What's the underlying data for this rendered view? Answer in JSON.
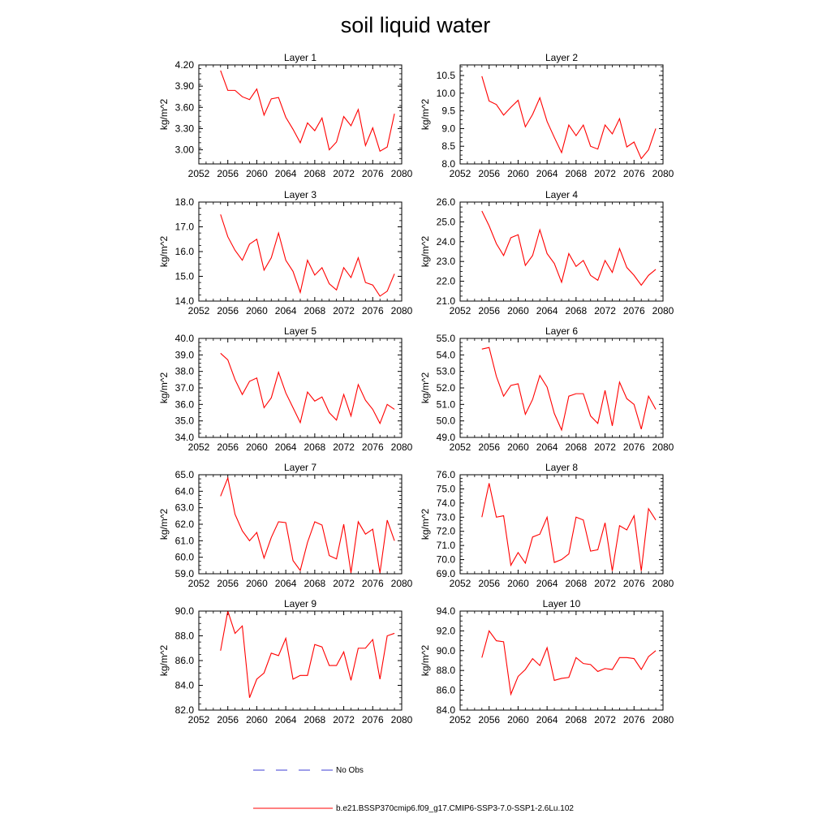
{
  "figure": {
    "title": "soil liquid water",
    "legend": {
      "obs_label": "No Obs",
      "obs_color": "#3d3dd6",
      "model_label": "b.e21.BSSP370cmip6.f09_g17.CMIP6-SSP3-7.0-SSP1-2.6Lu.102",
      "model_color": "#ff0000"
    }
  },
  "chart_data": [
    {
      "type": "line",
      "title": "Layer 1",
      "xlabel": "",
      "ylabel": "kg/m^2",
      "xlim": [
        2052,
        2080
      ],
      "ylim": [
        2.8,
        4.2
      ],
      "xticks": [
        "2052",
        "2056",
        "2060",
        "2064",
        "2068",
        "2072",
        "2076",
        "2080"
      ],
      "yticks": [
        "3.00",
        "3.30",
        "3.60",
        "3.90",
        "4.20"
      ],
      "series": [
        {
          "color": "#ff0000",
          "x": [
            2055,
            2056,
            2057,
            2058,
            2059,
            2060,
            2061,
            2062,
            2063,
            2064,
            2065,
            2066,
            2067,
            2068,
            2069,
            2070,
            2071,
            2072,
            2073,
            2074,
            2075,
            2076,
            2077,
            2078,
            2079
          ],
          "y": [
            4.12,
            3.84,
            3.84,
            3.75,
            3.71,
            3.86,
            3.49,
            3.72,
            3.74,
            3.46,
            3.29,
            3.1,
            3.38,
            3.27,
            3.45,
            3.0,
            3.11,
            3.47,
            3.34,
            3.57,
            3.06,
            3.31,
            2.98,
            3.04,
            3.51
          ]
        }
      ]
    },
    {
      "type": "line",
      "title": "Layer 2",
      "xlabel": "",
      "ylabel": "kg/m^2",
      "xlim": [
        2052,
        2080
      ],
      "ylim": [
        8.0,
        10.8
      ],
      "xticks": [
        "2052",
        "2056",
        "2060",
        "2064",
        "2068",
        "2072",
        "2076",
        "2080"
      ],
      "yticks": [
        "8.0",
        "8.5",
        "9.0",
        "9.5",
        "10.0",
        "10.5"
      ],
      "series": [
        {
          "color": "#ff0000",
          "x": [
            2055,
            2056,
            2057,
            2058,
            2059,
            2060,
            2061,
            2062,
            2063,
            2064,
            2065,
            2066,
            2067,
            2068,
            2069,
            2070,
            2071,
            2072,
            2073,
            2074,
            2075,
            2076,
            2077,
            2078,
            2079
          ],
          "y": [
            10.48,
            9.78,
            9.68,
            9.38,
            9.6,
            9.8,
            9.05,
            9.4,
            9.87,
            9.2,
            8.75,
            8.32,
            9.1,
            8.8,
            9.1,
            8.5,
            8.42,
            9.1,
            8.85,
            9.28,
            8.48,
            8.62,
            8.15,
            8.4,
            9.0
          ]
        }
      ]
    },
    {
      "type": "line",
      "title": "Layer 3",
      "xlabel": "",
      "ylabel": "kg/m^2",
      "xlim": [
        2052,
        2080
      ],
      "ylim": [
        14.0,
        18.0
      ],
      "xticks": [
        "2052",
        "2056",
        "2060",
        "2064",
        "2068",
        "2072",
        "2076",
        "2080"
      ],
      "yticks": [
        "14.0",
        "15.0",
        "16.0",
        "17.0",
        "18.0"
      ],
      "series": [
        {
          "color": "#ff0000",
          "x": [
            2055,
            2056,
            2057,
            2058,
            2059,
            2060,
            2061,
            2062,
            2063,
            2064,
            2065,
            2066,
            2067,
            2068,
            2069,
            2070,
            2071,
            2072,
            2073,
            2074,
            2075,
            2076,
            2077,
            2078,
            2079
          ],
          "y": [
            17.5,
            16.6,
            16.05,
            15.65,
            16.3,
            16.5,
            15.25,
            15.75,
            16.75,
            15.65,
            15.2,
            14.35,
            15.65,
            15.05,
            15.35,
            14.7,
            14.45,
            15.35,
            14.95,
            15.75,
            14.75,
            14.65,
            14.2,
            14.4,
            15.1
          ]
        }
      ]
    },
    {
      "type": "line",
      "title": "Layer 4",
      "xlabel": "",
      "ylabel": "kg/m^2",
      "xlim": [
        2052,
        2080
      ],
      "ylim": [
        21.0,
        26.0
      ],
      "xticks": [
        "2052",
        "2056",
        "2060",
        "2064",
        "2068",
        "2072",
        "2076",
        "2080"
      ],
      "yticks": [
        "21.0",
        "22.0",
        "23.0",
        "24.0",
        "25.0",
        "26.0"
      ],
      "series": [
        {
          "color": "#ff0000",
          "x": [
            2055,
            2056,
            2057,
            2058,
            2059,
            2060,
            2061,
            2062,
            2063,
            2064,
            2065,
            2066,
            2067,
            2068,
            2069,
            2070,
            2071,
            2072,
            2073,
            2074,
            2075,
            2076,
            2077,
            2078,
            2079
          ],
          "y": [
            25.55,
            24.8,
            23.9,
            23.3,
            24.2,
            24.35,
            22.8,
            23.3,
            24.6,
            23.4,
            22.9,
            21.95,
            23.4,
            22.75,
            23.05,
            22.3,
            22.05,
            23.05,
            22.45,
            23.65,
            22.7,
            22.3,
            21.8,
            22.3,
            22.6
          ]
        }
      ]
    },
    {
      "type": "line",
      "title": "Layer 5",
      "xlabel": "",
      "ylabel": "kg/m^2",
      "xlim": [
        2052,
        2080
      ],
      "ylim": [
        34.0,
        40.0
      ],
      "xticks": [
        "2052",
        "2056",
        "2060",
        "2064",
        "2068",
        "2072",
        "2076",
        "2080"
      ],
      "yticks": [
        "34.0",
        "35.0",
        "36.0",
        "37.0",
        "38.0",
        "39.0",
        "40.0"
      ],
      "series": [
        {
          "color": "#ff0000",
          "x": [
            2055,
            2056,
            2057,
            2058,
            2059,
            2060,
            2061,
            2062,
            2063,
            2064,
            2065,
            2066,
            2067,
            2068,
            2069,
            2070,
            2071,
            2072,
            2073,
            2074,
            2075,
            2076,
            2077,
            2078,
            2079
          ],
          "y": [
            39.1,
            38.7,
            37.5,
            36.6,
            37.4,
            37.6,
            35.8,
            36.4,
            37.95,
            36.7,
            35.8,
            34.9,
            36.75,
            36.2,
            36.45,
            35.5,
            35.05,
            36.6,
            35.3,
            37.2,
            36.25,
            35.7,
            34.85,
            36.0,
            35.7
          ]
        }
      ]
    },
    {
      "type": "line",
      "title": "Layer 6",
      "xlabel": "",
      "ylabel": "kg/m^2",
      "xlim": [
        2052,
        2080
      ],
      "ylim": [
        49.0,
        55.0
      ],
      "xticks": [
        "2052",
        "2056",
        "2060",
        "2064",
        "2068",
        "2072",
        "2076",
        "2080"
      ],
      "yticks": [
        "49.0",
        "50.0",
        "51.0",
        "52.0",
        "53.0",
        "54.0",
        "55.0"
      ],
      "series": [
        {
          "color": "#ff0000",
          "x": [
            2055,
            2056,
            2057,
            2058,
            2059,
            2060,
            2061,
            2062,
            2063,
            2064,
            2065,
            2066,
            2067,
            2068,
            2069,
            2070,
            2071,
            2072,
            2073,
            2074,
            2075,
            2076,
            2077,
            2078,
            2079
          ],
          "y": [
            54.35,
            54.45,
            52.7,
            51.5,
            52.15,
            52.25,
            50.4,
            51.3,
            52.75,
            52.05,
            50.45,
            49.45,
            51.5,
            51.65,
            51.65,
            50.3,
            49.85,
            51.85,
            49.7,
            52.35,
            51.35,
            51.0,
            49.5,
            51.5,
            50.7
          ]
        }
      ]
    },
    {
      "type": "line",
      "title": "Layer 7",
      "xlabel": "",
      "ylabel": "kg/m^2",
      "xlim": [
        2052,
        2080
      ],
      "ylim": [
        59.0,
        65.0
      ],
      "xticks": [
        "2052",
        "2056",
        "2060",
        "2064",
        "2068",
        "2072",
        "2076",
        "2080"
      ],
      "yticks": [
        "59.0",
        "60.0",
        "61.0",
        "62.0",
        "63.0",
        "64.0",
        "65.0"
      ],
      "series": [
        {
          "color": "#ff0000",
          "x": [
            2055,
            2056,
            2057,
            2058,
            2059,
            2060,
            2061,
            2062,
            2063,
            2064,
            2065,
            2066,
            2067,
            2068,
            2069,
            2070,
            2071,
            2072,
            2073,
            2074,
            2075,
            2076,
            2077,
            2078,
            2079
          ],
          "y": [
            63.7,
            64.8,
            62.6,
            61.6,
            61.0,
            61.5,
            59.95,
            61.2,
            62.15,
            62.1,
            59.8,
            59.2,
            60.9,
            62.15,
            61.95,
            60.1,
            59.9,
            62.0,
            59.05,
            62.15,
            61.4,
            61.7,
            59.05,
            62.25,
            61.0
          ]
        }
      ]
    },
    {
      "type": "line",
      "title": "Layer 8",
      "xlabel": "",
      "ylabel": "kg/m^2",
      "xlim": [
        2052,
        2080
      ],
      "ylim": [
        69.0,
        76.0
      ],
      "xticks": [
        "2052",
        "2056",
        "2060",
        "2064",
        "2068",
        "2072",
        "2076",
        "2080"
      ],
      "yticks": [
        "69.0",
        "70.0",
        "71.0",
        "72.0",
        "73.0",
        "74.0",
        "75.0",
        "76.0"
      ],
      "series": [
        {
          "color": "#ff0000",
          "x": [
            2055,
            2056,
            2057,
            2058,
            2059,
            2060,
            2061,
            2062,
            2063,
            2064,
            2065,
            2066,
            2067,
            2068,
            2069,
            2070,
            2071,
            2072,
            2073,
            2074,
            2075,
            2076,
            2077,
            2078,
            2079
          ],
          "y": [
            73.0,
            75.4,
            73.0,
            73.1,
            69.6,
            70.5,
            69.75,
            71.6,
            71.8,
            73.0,
            69.8,
            70.0,
            70.4,
            73.0,
            72.8,
            70.6,
            70.7,
            72.6,
            69.2,
            72.4,
            72.1,
            73.1,
            69.2,
            73.6,
            72.8
          ]
        }
      ]
    },
    {
      "type": "line",
      "title": "Layer 9",
      "xlabel": "",
      "ylabel": "kg/m^2",
      "xlim": [
        2052,
        2080
      ],
      "ylim": [
        82.0,
        90.0
      ],
      "xticks": [
        "2052",
        "2056",
        "2060",
        "2064",
        "2068",
        "2072",
        "2076",
        "2080"
      ],
      "yticks": [
        "82.0",
        "84.0",
        "86.0",
        "88.0",
        "90.0"
      ],
      "series": [
        {
          "color": "#ff0000",
          "x": [
            2055,
            2056,
            2057,
            2058,
            2059,
            2060,
            2061,
            2062,
            2063,
            2064,
            2065,
            2066,
            2067,
            2068,
            2069,
            2070,
            2071,
            2072,
            2073,
            2074,
            2075,
            2076,
            2077,
            2078,
            2079
          ],
          "y": [
            86.8,
            90.0,
            88.2,
            88.8,
            83.0,
            84.5,
            85.0,
            86.6,
            86.4,
            87.8,
            84.5,
            84.8,
            84.8,
            87.3,
            87.1,
            85.6,
            85.6,
            86.7,
            84.4,
            87.0,
            87.0,
            87.7,
            84.5,
            88.0,
            88.2
          ]
        }
      ]
    },
    {
      "type": "line",
      "title": "Layer 10",
      "xlabel": "",
      "ylabel": "kg/m^2",
      "xlim": [
        2052,
        2080
      ],
      "ylim": [
        84.0,
        94.0
      ],
      "xticks": [
        "2052",
        "2056",
        "2060",
        "2064",
        "2068",
        "2072",
        "2076",
        "2080"
      ],
      "yticks": [
        "84.0",
        "86.0",
        "88.0",
        "90.0",
        "92.0",
        "94.0"
      ],
      "series": [
        {
          "color": "#ff0000",
          "x": [
            2055,
            2056,
            2057,
            2058,
            2059,
            2060,
            2061,
            2062,
            2063,
            2064,
            2065,
            2066,
            2067,
            2068,
            2069,
            2070,
            2071,
            2072,
            2073,
            2074,
            2075,
            2076,
            2077,
            2078,
            2079
          ],
          "y": [
            89.3,
            92.0,
            91.0,
            90.9,
            85.6,
            87.4,
            88.1,
            89.2,
            88.5,
            90.3,
            87.0,
            87.2,
            87.3,
            89.3,
            88.7,
            88.6,
            87.9,
            88.2,
            88.1,
            89.3,
            89.3,
            89.2,
            88.1,
            89.4,
            90.0
          ]
        }
      ]
    }
  ]
}
